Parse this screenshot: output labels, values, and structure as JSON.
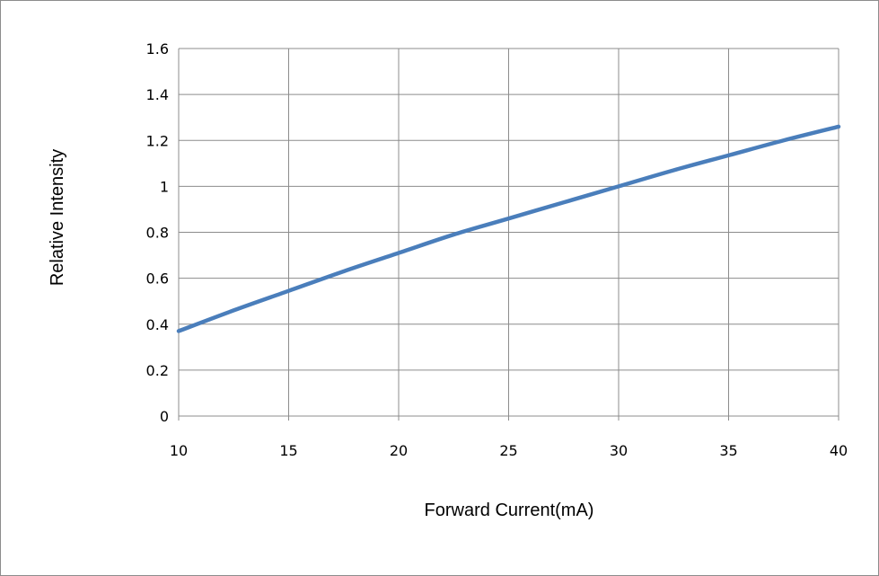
{
  "chart_data": {
    "type": "line",
    "xlabel": "Forward Current(mA)",
    "ylabel": "Relative Intensity",
    "xlim": [
      10,
      40
    ],
    "ylim": [
      0,
      1.6
    ],
    "xticks": [
      "10",
      "15",
      "20",
      "25",
      "30",
      "35",
      "40"
    ],
    "yticks": [
      "0",
      "0.2",
      "0.4",
      "0.6",
      "0.8",
      "1",
      "1.2",
      "1.4",
      "1.6"
    ],
    "grid": true,
    "legend": "none",
    "series": [
      {
        "color": "#4a7ebb",
        "x": [
          10,
          12.5,
          15,
          17.5,
          20,
          22.5,
          25,
          27.5,
          30,
          32.5,
          35,
          37.5,
          40
        ],
        "y": [
          0.37,
          0.46,
          0.545,
          0.63,
          0.71,
          0.79,
          0.86,
          0.93,
          1.0,
          1.07,
          1.135,
          1.2,
          1.26
        ]
      }
    ]
  }
}
